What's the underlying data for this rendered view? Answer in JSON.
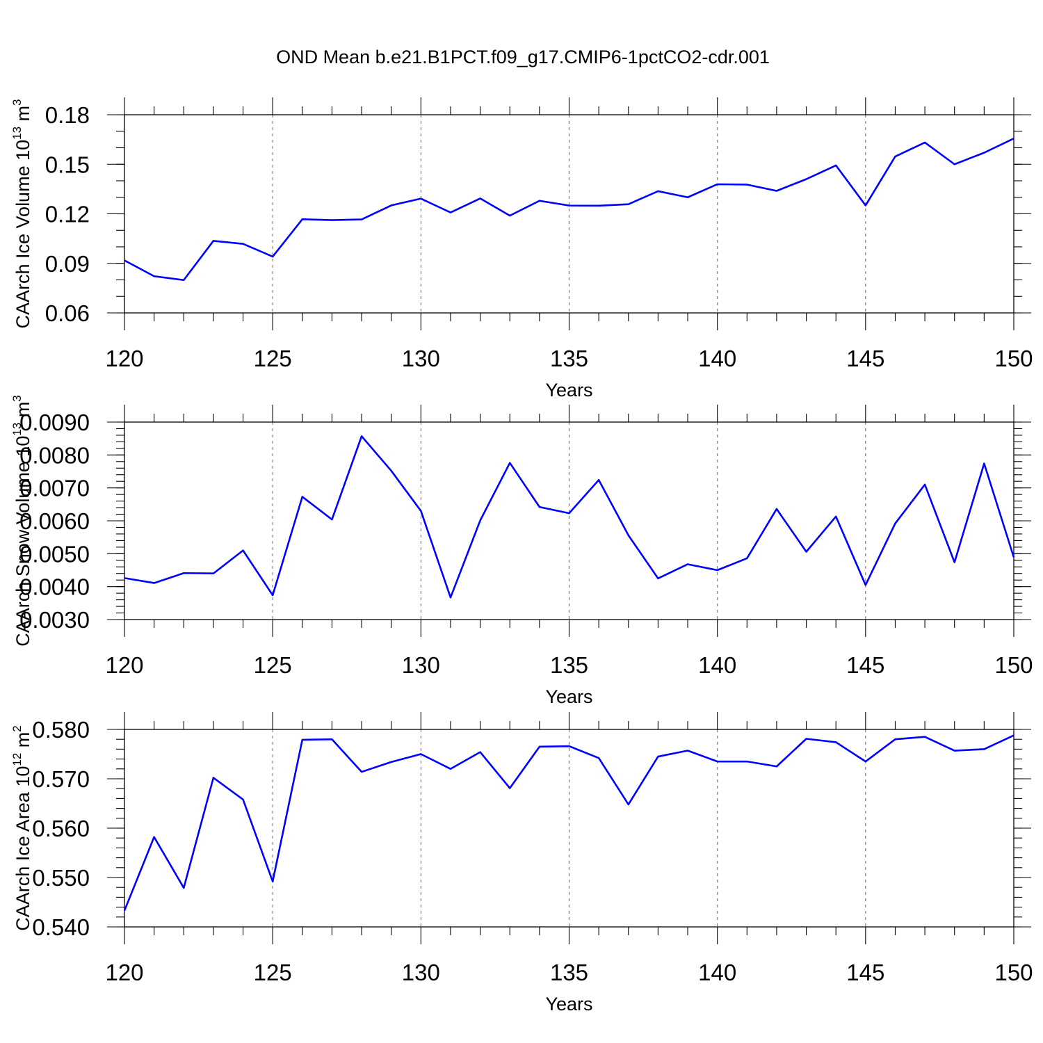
{
  "chart_data": {
    "title": "OND Mean b.e21.B1PCT.f09_g17.CMIP6-1pctCO2-cdr.001",
    "type": "line",
    "colors": {
      "series": "#0000ff",
      "frame": "#000000",
      "grid": "#666666"
    },
    "panels": [
      {
        "type": "line",
        "xlabel": "Years",
        "ylabel_main": "CAArch Ice Volume 10",
        "ylabel_exp": "13",
        "ylabel_unit": " m",
        "ylabel_unit_exp": "3",
        "xlim": [
          120,
          150
        ],
        "ylim": [
          0.06,
          0.18
        ],
        "xticks": [
          120,
          125,
          130,
          135,
          140,
          145,
          150
        ],
        "xtick_labels": [
          "120",
          "125",
          "130",
          "135",
          "140",
          "145",
          "150"
        ],
        "yticks": [
          0.06,
          0.09,
          0.12,
          0.15,
          0.18
        ],
        "ytick_labels": [
          "0.06",
          "0.09",
          "0.12",
          "0.15",
          "0.18"
        ],
        "y_minor_step": 0.01,
        "x": [
          120,
          121,
          122,
          123,
          124,
          125,
          126,
          127,
          128,
          129,
          130,
          131,
          132,
          133,
          134,
          135,
          136,
          137,
          138,
          139,
          140,
          141,
          142,
          143,
          144,
          145,
          146,
          147,
          148,
          149,
          150
        ],
        "values": [
          0.0918,
          0.0822,
          0.0799,
          0.1036,
          0.1018,
          0.0941,
          0.1167,
          0.1162,
          0.1166,
          0.1251,
          0.1292,
          0.1208,
          0.1293,
          0.1189,
          0.1279,
          0.125,
          0.1249,
          0.1258,
          0.1337,
          0.13,
          0.1379,
          0.1377,
          0.1339,
          0.141,
          0.1493,
          0.1251,
          0.1547,
          0.1632,
          0.15,
          0.157,
          0.1656
        ]
      },
      {
        "type": "line",
        "xlabel": "Years",
        "ylabel_main": "CAArch Snow Volume 10",
        "ylabel_exp": "13",
        "ylabel_unit": " m",
        "ylabel_unit_exp": "3",
        "xlim": [
          120,
          150
        ],
        "ylim": [
          0.003,
          0.009
        ],
        "xticks": [
          120,
          125,
          130,
          135,
          140,
          145,
          150
        ],
        "xtick_labels": [
          "120",
          "125",
          "130",
          "135",
          "140",
          "145",
          "150"
        ],
        "yticks": [
          0.003,
          0.004,
          0.005,
          0.006,
          0.007,
          0.008,
          0.009
        ],
        "ytick_labels": [
          "0.0030",
          "0.0040",
          "0.0050",
          "0.0060",
          "0.0070",
          "0.0080",
          "0.0090"
        ],
        "y_minor_step": 0.0002,
        "x": [
          120,
          121,
          122,
          123,
          124,
          125,
          126,
          127,
          128,
          129,
          130,
          131,
          132,
          133,
          134,
          135,
          136,
          137,
          138,
          139,
          140,
          141,
          142,
          143,
          144,
          145,
          146,
          147,
          148,
          149,
          150
        ],
        "values": [
          0.00426,
          0.00411,
          0.00441,
          0.0044,
          0.0051,
          0.00374,
          0.00673,
          0.00604,
          0.00857,
          0.00752,
          0.0063,
          0.00367,
          0.00601,
          0.00776,
          0.00642,
          0.00623,
          0.00724,
          0.00556,
          0.00425,
          0.00468,
          0.0045,
          0.00486,
          0.00636,
          0.00506,
          0.00613,
          0.00405,
          0.00592,
          0.0071,
          0.00474,
          0.00774,
          0.00489
        ]
      },
      {
        "type": "line",
        "xlabel": "Years",
        "ylabel_main": "CAArch Ice Area 10",
        "ylabel_exp": "12",
        "ylabel_unit": " m",
        "ylabel_unit_exp": "2",
        "xlim": [
          120,
          150
        ],
        "ylim": [
          0.54,
          0.58
        ],
        "xticks": [
          120,
          125,
          130,
          135,
          140,
          145,
          150
        ],
        "xtick_labels": [
          "120",
          "125",
          "130",
          "135",
          "140",
          "145",
          "150"
        ],
        "yticks": [
          0.54,
          0.55,
          0.56,
          0.57,
          0.58
        ],
        "ytick_labels": [
          "0.540",
          "0.550",
          "0.560",
          "0.570",
          "0.580"
        ],
        "y_minor_step": 0.002,
        "x": [
          120,
          121,
          122,
          123,
          124,
          125,
          126,
          127,
          128,
          129,
          130,
          131,
          132,
          133,
          134,
          135,
          136,
          137,
          138,
          139,
          140,
          141,
          142,
          143,
          144,
          145,
          146,
          147,
          148,
          149,
          150
        ],
        "values": [
          0.5433,
          0.5582,
          0.5479,
          0.5702,
          0.5658,
          0.5492,
          0.5779,
          0.578,
          0.5714,
          0.5734,
          0.575,
          0.572,
          0.5754,
          0.5681,
          0.5765,
          0.5766,
          0.5742,
          0.5648,
          0.5745,
          0.5757,
          0.5735,
          0.5735,
          0.5725,
          0.5781,
          0.5774,
          0.5735,
          0.578,
          0.5785,
          0.5757,
          0.576,
          0.5788
        ]
      }
    ]
  }
}
